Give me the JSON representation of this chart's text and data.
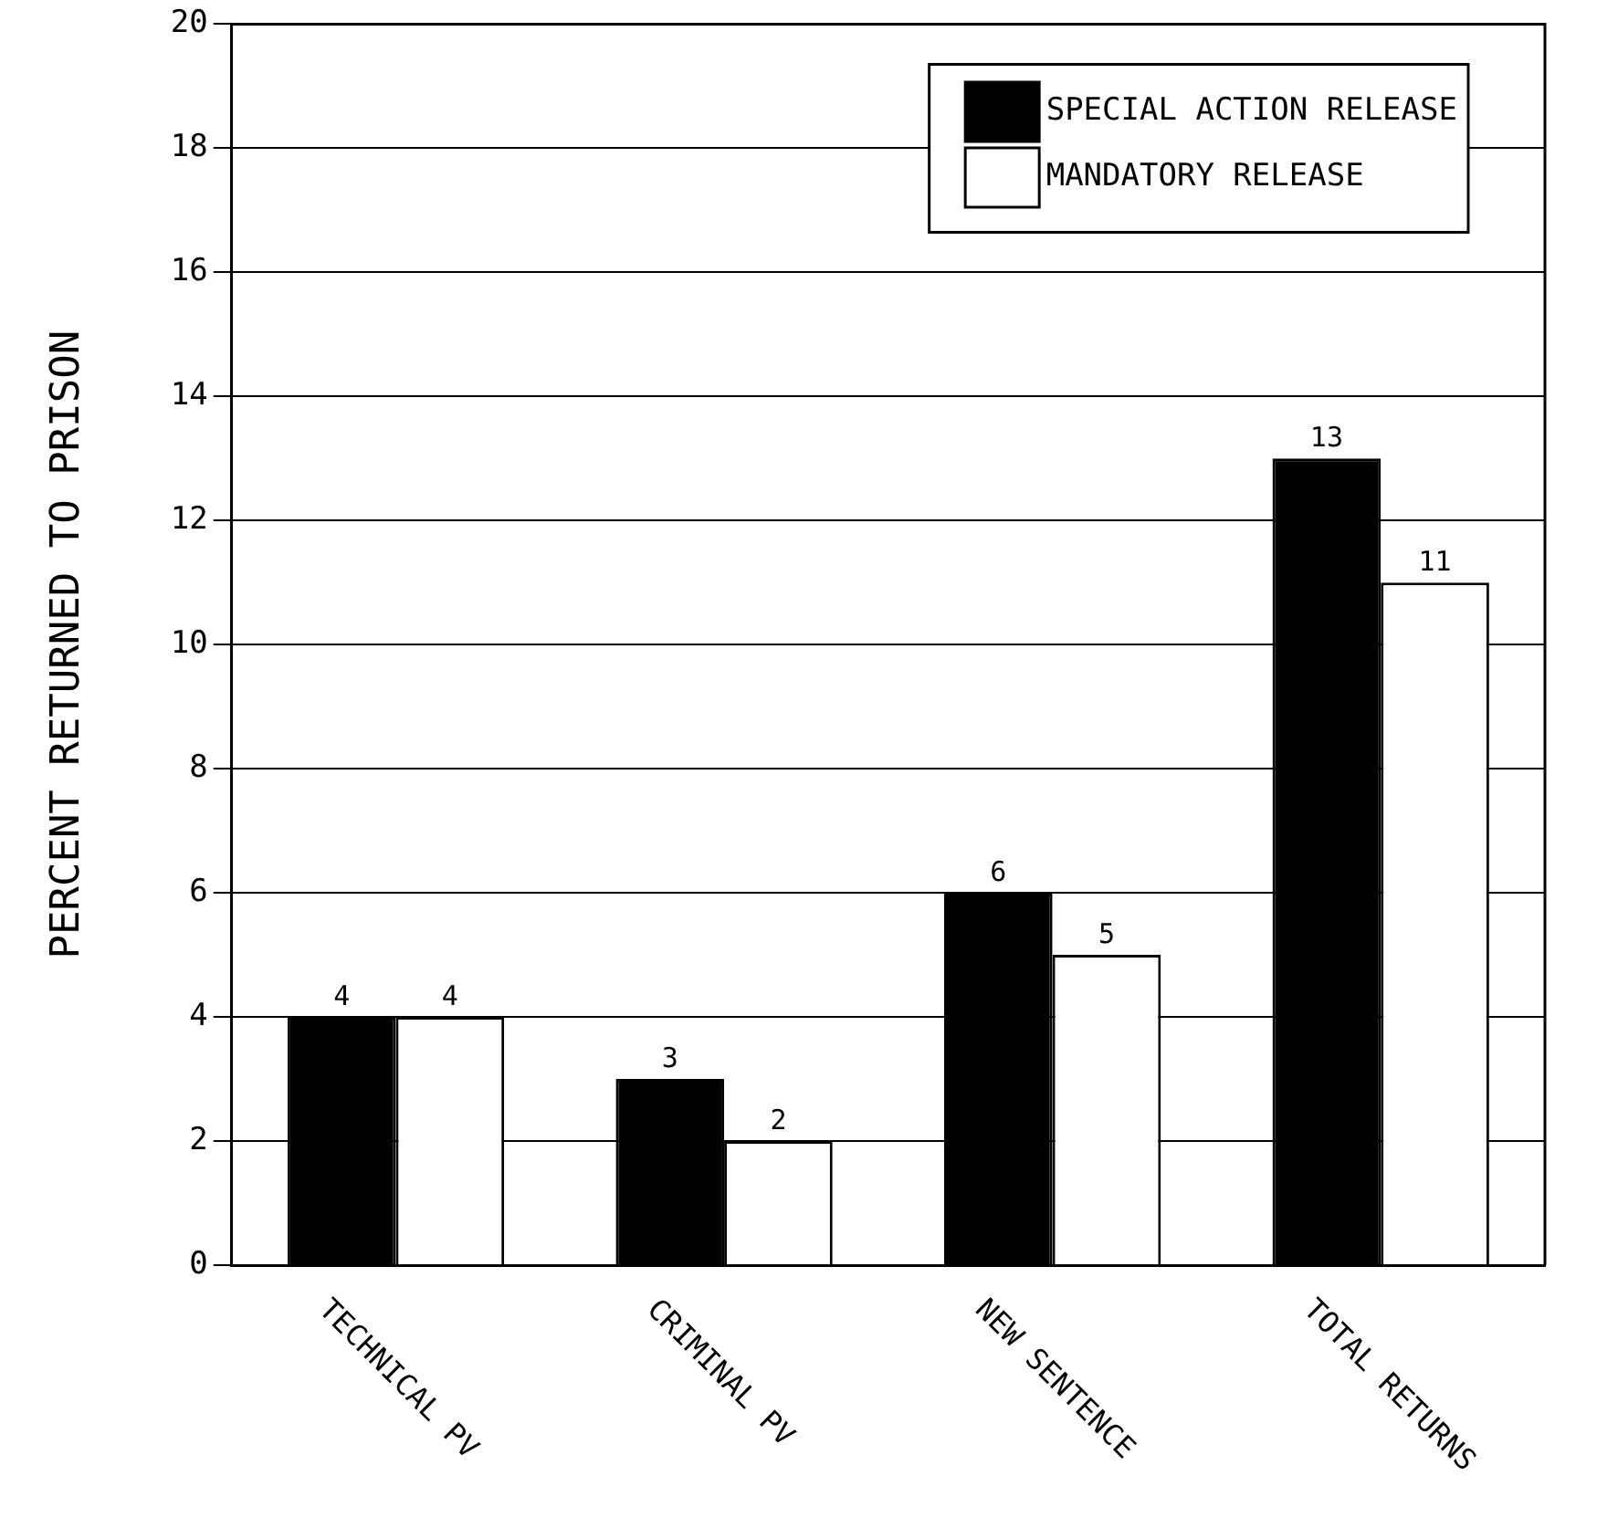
{
  "chart_data": {
    "type": "bar",
    "ylabel": "PERCENT RETURNED TO PRISON",
    "categories": [
      "TECHNICAL PV",
      "CRIMINAL PV",
      "NEW SENTENCE",
      "TOTAL RETURNS"
    ],
    "series": [
      {
        "name": "SPECIAL ACTION RELEASE",
        "color": "#000000",
        "values": [
          4,
          3,
          6,
          13
        ]
      },
      {
        "name": "MANDATORY RELEASE",
        "color": "#ffffff",
        "values": [
          4,
          2,
          5,
          11
        ]
      }
    ],
    "ylim": [
      0,
      20
    ],
    "yticks": [
      0,
      2,
      4,
      6,
      8,
      10,
      12,
      14,
      16,
      18,
      20
    ],
    "grid": "y",
    "legend": "top right",
    "data_labels": true
  }
}
